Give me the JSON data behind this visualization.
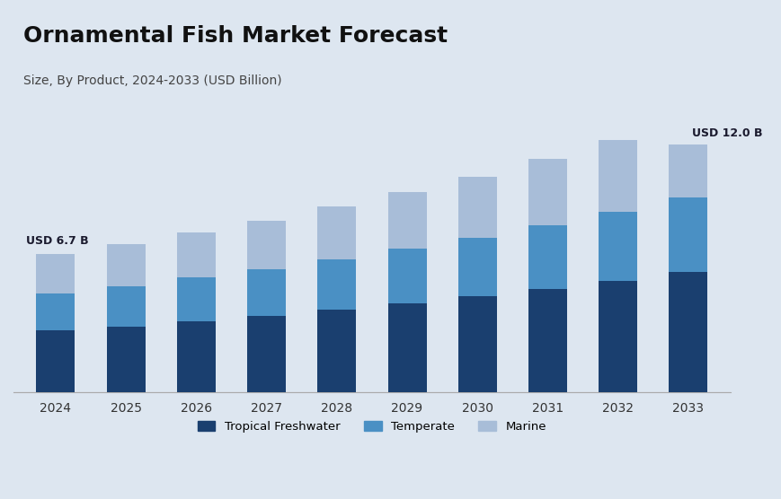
{
  "title": "Ornamental Fish Market Forecast",
  "subtitle": "Size, By Product, 2024-2033 (USD Billion)",
  "years": [
    2024,
    2025,
    2026,
    2027,
    2028,
    2029,
    2030,
    2031,
    2032,
    2033
  ],
  "tropical_freshwater": [
    3.0,
    3.2,
    3.45,
    3.7,
    4.0,
    4.3,
    4.65,
    5.0,
    5.4,
    5.85
  ],
  "temperate": [
    1.8,
    1.95,
    2.1,
    2.25,
    2.45,
    2.65,
    2.85,
    3.1,
    3.35,
    3.6
  ],
  "marine": [
    1.9,
    2.05,
    2.2,
    2.35,
    2.55,
    2.75,
    2.95,
    3.2,
    3.45,
    2.55
  ],
  "label_2024": "USD 6.7 B",
  "label_2033": "USD 12.0 B",
  "color_tropical": "#1a3f6f",
  "color_temperate": "#4a90c4",
  "color_marine": "#a8bdd8",
  "bg_color": "#dde6f0",
  "bar_width": 0.55,
  "ylim": [
    0,
    14
  ],
  "legend_labels": [
    "Tropical Freshwater",
    "Temperate",
    "Marine"
  ]
}
